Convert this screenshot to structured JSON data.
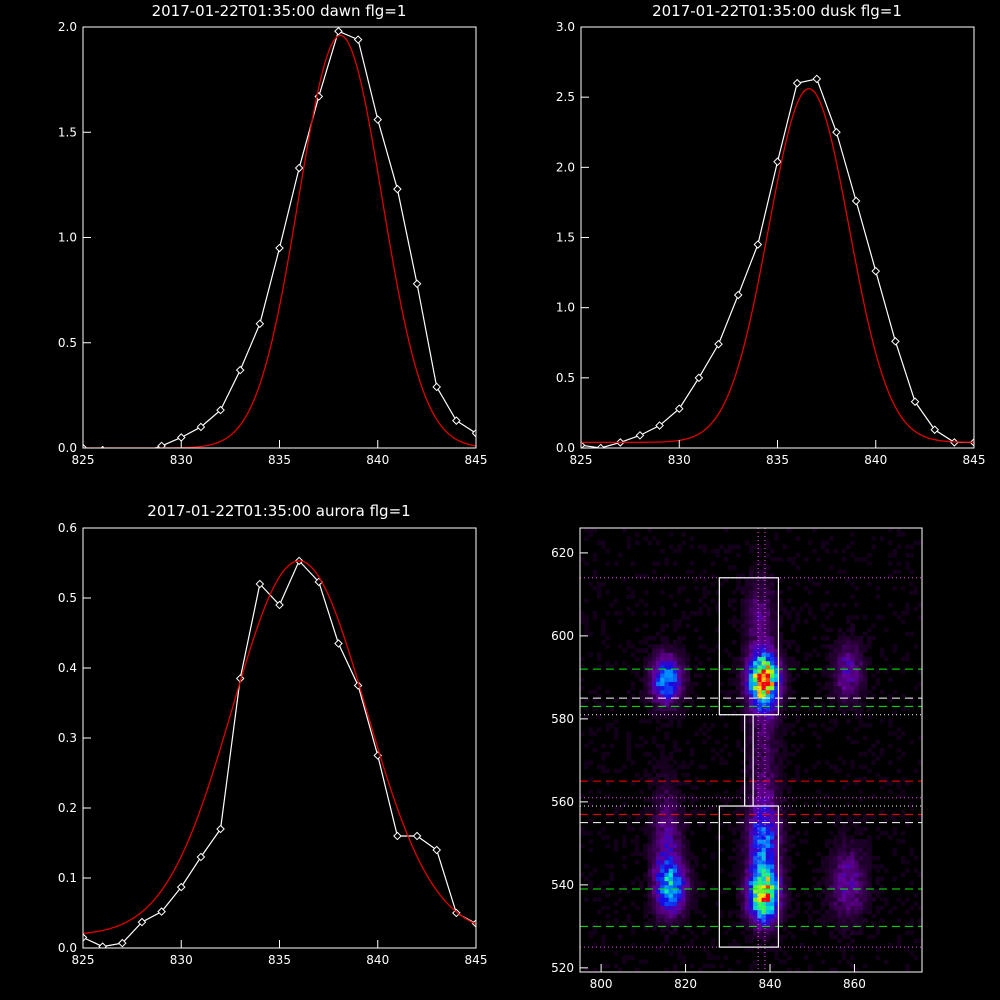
{
  "chart_data": [
    {
      "type": "line",
      "title": "2017-01-22T01:35:00 dawn flg=1",
      "xlim": [
        825,
        845
      ],
      "ylim": [
        0,
        2.0
      ],
      "xticks": [
        "825",
        "830",
        "835",
        "840",
        "845"
      ],
      "yticks": [
        "0.0",
        "0.5",
        "1.0",
        "1.5",
        "2.0"
      ],
      "series": [
        {
          "style": "line-diamond",
          "color": "#ffffff",
          "x": [
            825,
            826,
            827,
            828,
            829,
            830,
            831,
            832,
            833,
            834,
            835,
            836,
            837,
            838,
            839,
            840,
            841,
            842,
            843,
            844,
            845
          ],
          "y": [
            0.0,
            -0.01,
            -0.02,
            -0.02,
            0.01,
            0.05,
            0.1,
            0.18,
            0.37,
            0.59,
            0.95,
            1.33,
            1.67,
            1.98,
            1.94,
            1.56,
            1.23,
            0.78,
            0.29,
            0.13,
            0.07
          ]
        },
        {
          "style": "gauss",
          "color": "#e00000",
          "amp": 1.96,
          "center": 838.1,
          "sigma": 2.12,
          "offset": 0.0
        }
      ]
    },
    {
      "type": "line",
      "title": "2017-01-22T01:35:00 dusk flg=1",
      "xlim": [
        825,
        845
      ],
      "ylim": [
        0,
        3.0
      ],
      "xticks": [
        "825",
        "830",
        "835",
        "840",
        "845"
      ],
      "yticks": [
        "0.0",
        "0.5",
        "1.0",
        "1.5",
        "2.0",
        "2.5",
        "3.0"
      ],
      "series": [
        {
          "style": "line-diamond",
          "color": "#ffffff",
          "x": [
            825,
            826,
            827,
            828,
            829,
            830,
            831,
            832,
            833,
            834,
            835,
            836,
            837,
            838,
            839,
            840,
            841,
            842,
            843,
            844,
            845
          ],
          "y": [
            0.02,
            0.0,
            0.04,
            0.09,
            0.16,
            0.28,
            0.5,
            0.74,
            1.09,
            1.45,
            2.04,
            2.6,
            2.63,
            2.25,
            1.76,
            1.26,
            0.76,
            0.33,
            0.13,
            0.04,
            0.04
          ]
        },
        {
          "style": "gauss",
          "color": "#e00000",
          "amp": 2.52,
          "center": 836.6,
          "sigma": 2.05,
          "offset": 0.04
        }
      ]
    },
    {
      "type": "line",
      "title": "2017-01-22T01:35:00 aurora flg=1",
      "xlim": [
        825,
        845
      ],
      "ylim": [
        0,
        0.6
      ],
      "xticks": [
        "825",
        "830",
        "835",
        "840",
        "845"
      ],
      "yticks": [
        "0.0",
        "0.1",
        "0.2",
        "0.3",
        "0.4",
        "0.5",
        "0.6"
      ],
      "series": [
        {
          "style": "line-diamond",
          "color": "#ffffff",
          "x": [
            825,
            826,
            827,
            828,
            829,
            830,
            831,
            832,
            833,
            834,
            835,
            836,
            837,
            838,
            839,
            840,
            841,
            842,
            843,
            844,
            845
          ],
          "y": [
            0.015,
            0.002,
            0.007,
            0.037,
            0.052,
            0.087,
            0.13,
            0.17,
            0.385,
            0.52,
            0.49,
            0.553,
            0.523,
            0.435,
            0.375,
            0.275,
            0.16,
            0.16,
            0.14,
            0.05,
            0.035
          ]
        },
        {
          "style": "gauss",
          "color": "#e00000",
          "amp": 0.535,
          "center": 836.0,
          "sigma": 3.4,
          "offset": 0.018
        }
      ]
    },
    {
      "type": "heatmap",
      "xlim": [
        795,
        876
      ],
      "ylim": [
        519,
        626
      ],
      "xticks": [
        "800",
        "820",
        "840",
        "860"
      ],
      "yticks": [
        "520",
        "540",
        "560",
        "580",
        "600",
        "620"
      ],
      "blobs": [
        {
          "x": 815,
          "y": 589,
          "sx": 2.5,
          "sy": 4,
          "amp": 0.55
        },
        {
          "x": 838,
          "y": 589,
          "sx": 2.5,
          "sy": 4.5,
          "amp": 0.95
        },
        {
          "x": 858,
          "y": 591,
          "sx": 2.5,
          "sy": 5,
          "amp": 0.25
        },
        {
          "x": 816,
          "y": 539,
          "sx": 2.5,
          "sy": 4.5,
          "amp": 0.5
        },
        {
          "x": 838,
          "y": 537,
          "sx": 2.5,
          "sy": 4.5,
          "amp": 0.85
        },
        {
          "x": 838,
          "y": 550,
          "sx": 2.5,
          "sy": 7,
          "amp": 0.45
        },
        {
          "x": 858,
          "y": 540,
          "sx": 3,
          "sy": 6,
          "amp": 0.25
        },
        {
          "x": 815,
          "y": 550,
          "sx": 2.5,
          "sy": 9,
          "amp": 0.22
        },
        {
          "x": 838,
          "y": 572,
          "sx": 2.5,
          "sy": 12,
          "amp": 0.14
        },
        {
          "x": 837,
          "y": 605,
          "sx": 2.5,
          "sy": 6,
          "amp": 0.18
        }
      ],
      "boxes": [
        {
          "x0": 828,
          "x1": 842,
          "y0": 581,
          "y1": 614,
          "color": "#ffffff"
        },
        {
          "x0": 828,
          "x1": 842,
          "y0": 525,
          "y1": 559,
          "color": "#ffffff"
        },
        {
          "x0": 834,
          "x1": 836,
          "y0": 559,
          "y1": 581,
          "color": "#ffffff"
        }
      ],
      "hlines": [
        {
          "y": 614,
          "color": "#ff44ff",
          "dash": "1,3"
        },
        {
          "y": 592,
          "color": "#00ee00",
          "dash": "8,5"
        },
        {
          "y": 585,
          "color": "#ffffff",
          "dash": "8,5"
        },
        {
          "y": 583,
          "color": "#00ee00",
          "dash": "8,5"
        },
        {
          "y": 581,
          "color": "#ffffff",
          "dash": "1,3"
        },
        {
          "y": 565,
          "color": "#ff0000",
          "dash": "8,5"
        },
        {
          "y": 561,
          "color": "#ff44ff",
          "dash": "1,3"
        },
        {
          "y": 559,
          "color": "#ffffff",
          "dash": "1,3"
        },
        {
          "y": 557,
          "color": "#ff0000",
          "dash": "8,5"
        },
        {
          "y": 555,
          "color": "#ffffff",
          "dash": "8,5"
        },
        {
          "y": 539,
          "color": "#00ee00",
          "dash": "8,5"
        },
        {
          "y": 530,
          "color": "#00ee00",
          "dash": "8,5"
        },
        {
          "y": 525,
          "color": "#ff44ff",
          "dash": "1,3"
        }
      ],
      "vlines": [
        {
          "x": 837.2,
          "color": "#ff44ff",
          "dash": "1,3"
        },
        {
          "x": 838.8,
          "color": "#ff44ff",
          "dash": "1,3"
        }
      ]
    }
  ]
}
